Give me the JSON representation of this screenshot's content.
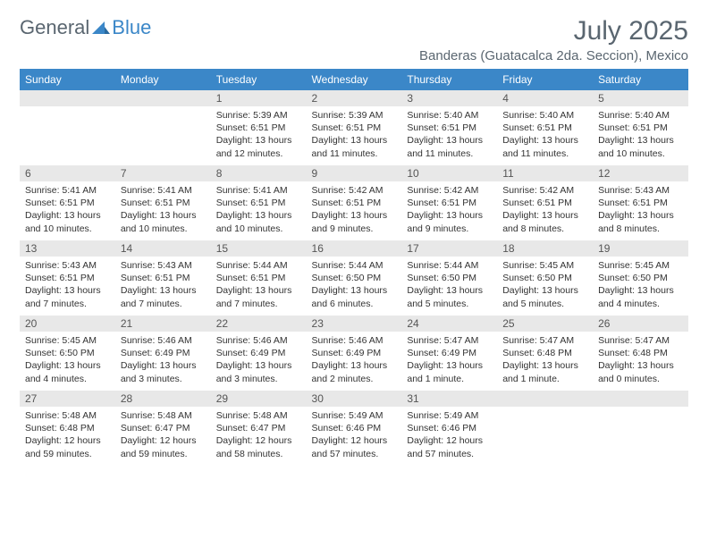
{
  "logo": {
    "text1": "General",
    "text2": "Blue"
  },
  "header": {
    "month_title": "July 2025",
    "location": "Banderas (Guatacalca 2da. Seccion), Mexico"
  },
  "colors": {
    "header_bg": "#3b87c8",
    "header_text": "#ffffff",
    "daynum_bg": "#e8e8e8",
    "text": "#333333",
    "title_text": "#5a6670"
  },
  "dayHeaders": [
    "Sunday",
    "Monday",
    "Tuesday",
    "Wednesday",
    "Thursday",
    "Friday",
    "Saturday"
  ],
  "weeks": [
    [
      null,
      null,
      {
        "num": "1",
        "sunrise": "Sunrise: 5:39 AM",
        "sunset": "Sunset: 6:51 PM",
        "daylight": "Daylight: 13 hours and 12 minutes."
      },
      {
        "num": "2",
        "sunrise": "Sunrise: 5:39 AM",
        "sunset": "Sunset: 6:51 PM",
        "daylight": "Daylight: 13 hours and 11 minutes."
      },
      {
        "num": "3",
        "sunrise": "Sunrise: 5:40 AM",
        "sunset": "Sunset: 6:51 PM",
        "daylight": "Daylight: 13 hours and 11 minutes."
      },
      {
        "num": "4",
        "sunrise": "Sunrise: 5:40 AM",
        "sunset": "Sunset: 6:51 PM",
        "daylight": "Daylight: 13 hours and 11 minutes."
      },
      {
        "num": "5",
        "sunrise": "Sunrise: 5:40 AM",
        "sunset": "Sunset: 6:51 PM",
        "daylight": "Daylight: 13 hours and 10 minutes."
      }
    ],
    [
      {
        "num": "6",
        "sunrise": "Sunrise: 5:41 AM",
        "sunset": "Sunset: 6:51 PM",
        "daylight": "Daylight: 13 hours and 10 minutes."
      },
      {
        "num": "7",
        "sunrise": "Sunrise: 5:41 AM",
        "sunset": "Sunset: 6:51 PM",
        "daylight": "Daylight: 13 hours and 10 minutes."
      },
      {
        "num": "8",
        "sunrise": "Sunrise: 5:41 AM",
        "sunset": "Sunset: 6:51 PM",
        "daylight": "Daylight: 13 hours and 10 minutes."
      },
      {
        "num": "9",
        "sunrise": "Sunrise: 5:42 AM",
        "sunset": "Sunset: 6:51 PM",
        "daylight": "Daylight: 13 hours and 9 minutes."
      },
      {
        "num": "10",
        "sunrise": "Sunrise: 5:42 AM",
        "sunset": "Sunset: 6:51 PM",
        "daylight": "Daylight: 13 hours and 9 minutes."
      },
      {
        "num": "11",
        "sunrise": "Sunrise: 5:42 AM",
        "sunset": "Sunset: 6:51 PM",
        "daylight": "Daylight: 13 hours and 8 minutes."
      },
      {
        "num": "12",
        "sunrise": "Sunrise: 5:43 AM",
        "sunset": "Sunset: 6:51 PM",
        "daylight": "Daylight: 13 hours and 8 minutes."
      }
    ],
    [
      {
        "num": "13",
        "sunrise": "Sunrise: 5:43 AM",
        "sunset": "Sunset: 6:51 PM",
        "daylight": "Daylight: 13 hours and 7 minutes."
      },
      {
        "num": "14",
        "sunrise": "Sunrise: 5:43 AM",
        "sunset": "Sunset: 6:51 PM",
        "daylight": "Daylight: 13 hours and 7 minutes."
      },
      {
        "num": "15",
        "sunrise": "Sunrise: 5:44 AM",
        "sunset": "Sunset: 6:51 PM",
        "daylight": "Daylight: 13 hours and 7 minutes."
      },
      {
        "num": "16",
        "sunrise": "Sunrise: 5:44 AM",
        "sunset": "Sunset: 6:50 PM",
        "daylight": "Daylight: 13 hours and 6 minutes."
      },
      {
        "num": "17",
        "sunrise": "Sunrise: 5:44 AM",
        "sunset": "Sunset: 6:50 PM",
        "daylight": "Daylight: 13 hours and 5 minutes."
      },
      {
        "num": "18",
        "sunrise": "Sunrise: 5:45 AM",
        "sunset": "Sunset: 6:50 PM",
        "daylight": "Daylight: 13 hours and 5 minutes."
      },
      {
        "num": "19",
        "sunrise": "Sunrise: 5:45 AM",
        "sunset": "Sunset: 6:50 PM",
        "daylight": "Daylight: 13 hours and 4 minutes."
      }
    ],
    [
      {
        "num": "20",
        "sunrise": "Sunrise: 5:45 AM",
        "sunset": "Sunset: 6:50 PM",
        "daylight": "Daylight: 13 hours and 4 minutes."
      },
      {
        "num": "21",
        "sunrise": "Sunrise: 5:46 AM",
        "sunset": "Sunset: 6:49 PM",
        "daylight": "Daylight: 13 hours and 3 minutes."
      },
      {
        "num": "22",
        "sunrise": "Sunrise: 5:46 AM",
        "sunset": "Sunset: 6:49 PM",
        "daylight": "Daylight: 13 hours and 3 minutes."
      },
      {
        "num": "23",
        "sunrise": "Sunrise: 5:46 AM",
        "sunset": "Sunset: 6:49 PM",
        "daylight": "Daylight: 13 hours and 2 minutes."
      },
      {
        "num": "24",
        "sunrise": "Sunrise: 5:47 AM",
        "sunset": "Sunset: 6:49 PM",
        "daylight": "Daylight: 13 hours and 1 minute."
      },
      {
        "num": "25",
        "sunrise": "Sunrise: 5:47 AM",
        "sunset": "Sunset: 6:48 PM",
        "daylight": "Daylight: 13 hours and 1 minute."
      },
      {
        "num": "26",
        "sunrise": "Sunrise: 5:47 AM",
        "sunset": "Sunset: 6:48 PM",
        "daylight": "Daylight: 13 hours and 0 minutes."
      }
    ],
    [
      {
        "num": "27",
        "sunrise": "Sunrise: 5:48 AM",
        "sunset": "Sunset: 6:48 PM",
        "daylight": "Daylight: 12 hours and 59 minutes."
      },
      {
        "num": "28",
        "sunrise": "Sunrise: 5:48 AM",
        "sunset": "Sunset: 6:47 PM",
        "daylight": "Daylight: 12 hours and 59 minutes."
      },
      {
        "num": "29",
        "sunrise": "Sunrise: 5:48 AM",
        "sunset": "Sunset: 6:47 PM",
        "daylight": "Daylight: 12 hours and 58 minutes."
      },
      {
        "num": "30",
        "sunrise": "Sunrise: 5:49 AM",
        "sunset": "Sunset: 6:46 PM",
        "daylight": "Daylight: 12 hours and 57 minutes."
      },
      {
        "num": "31",
        "sunrise": "Sunrise: 5:49 AM",
        "sunset": "Sunset: 6:46 PM",
        "daylight": "Daylight: 12 hours and 57 minutes."
      },
      null,
      null
    ]
  ]
}
